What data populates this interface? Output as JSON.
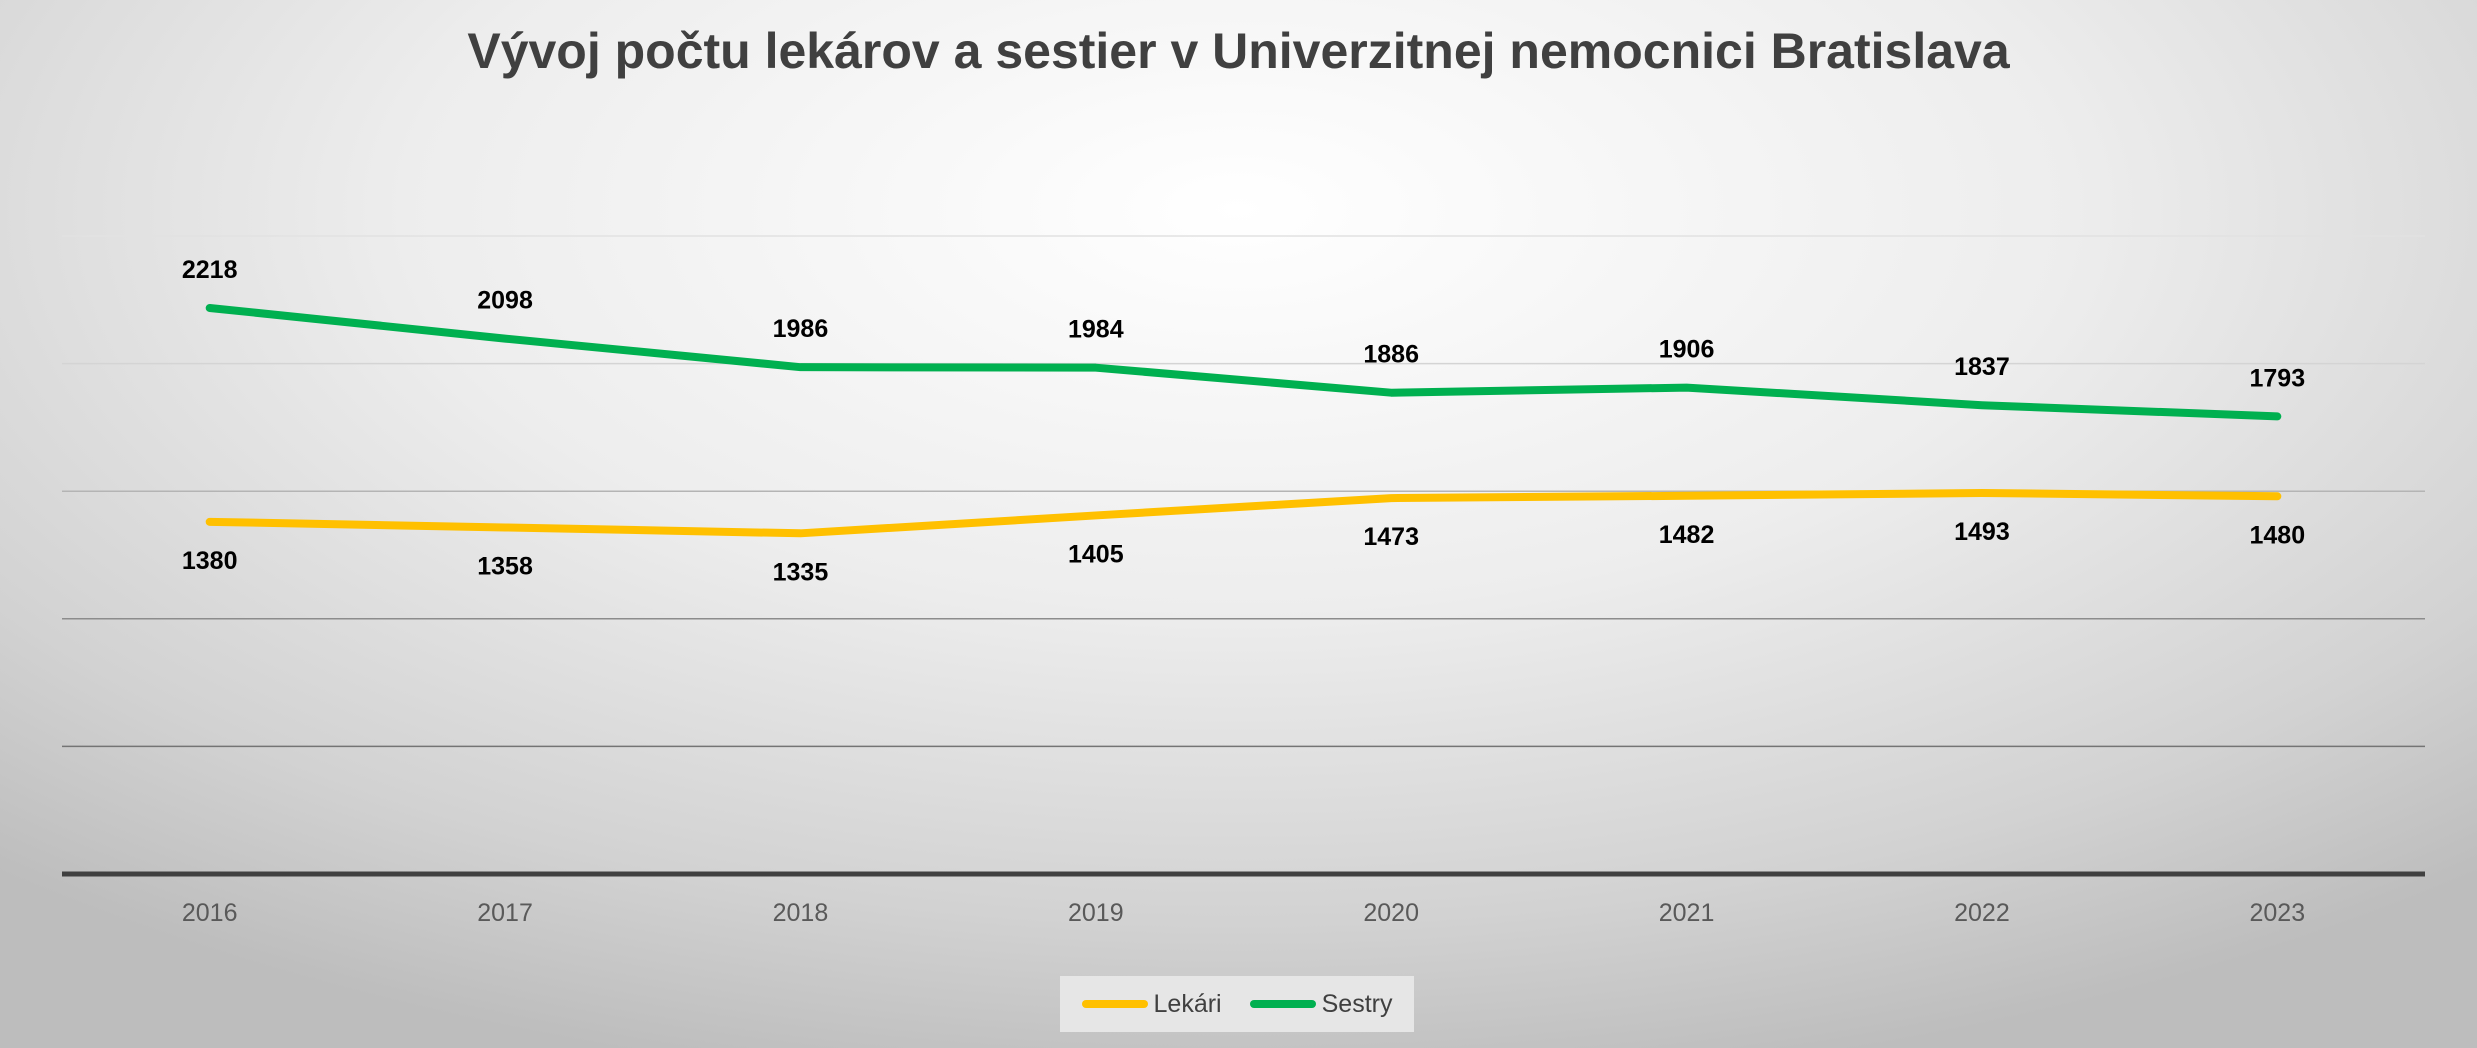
{
  "chart_data": {
    "type": "line",
    "title": "Vývoj počtu lekárov a sestier v Univerzitnej nemocnici Bratislava",
    "xlabel": "",
    "ylabel": "",
    "categories": [
      "2016",
      "2017",
      "2018",
      "2019",
      "2020",
      "2021",
      "2022",
      "2023"
    ],
    "series": [
      {
        "name": "Lekári",
        "values": [
          1380,
          1358,
          1335,
          1405,
          1473,
          1482,
          1493,
          1480
        ],
        "color": "#FFC000",
        "label_position": "below"
      },
      {
        "name": "Sestry",
        "values": [
          2218,
          2098,
          1986,
          1984,
          1886,
          1906,
          1837,
          1793
        ],
        "color": "#00B050",
        "label_position": "above"
      }
    ],
    "ylim": [
      0,
      2500
    ],
    "gridlines": true,
    "data_labels": true,
    "legend_position": "bottom",
    "y_axis_labels_visible": false
  }
}
